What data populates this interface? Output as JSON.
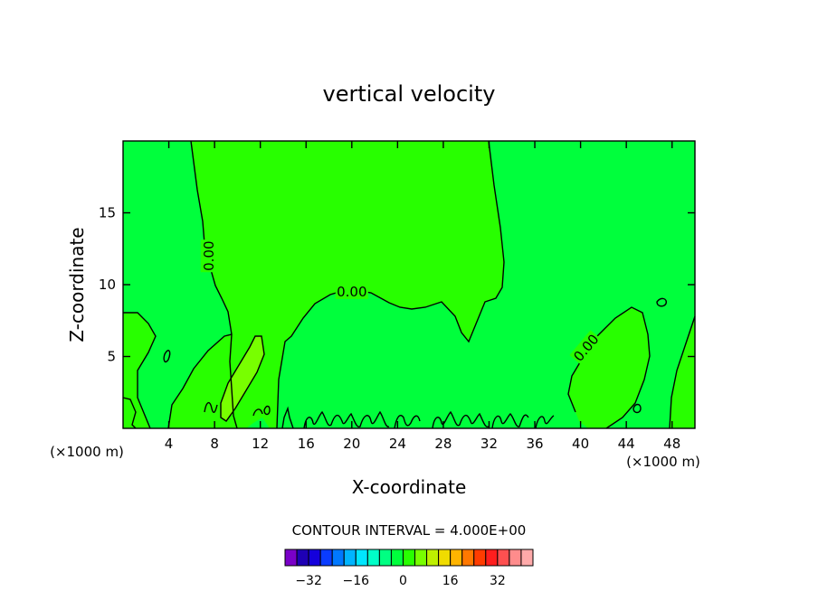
{
  "chart_data": {
    "type": "heatmap",
    "title": "vertical velocity",
    "xlabel": "X-coordinate",
    "ylabel": "Z-coordinate",
    "x_unit_left": "(×1000 m)",
    "x_unit_right": "(×1000 m)",
    "xlim": [
      0,
      50
    ],
    "ylim": [
      0,
      20
    ],
    "x_ticks": [
      4,
      8,
      12,
      16,
      20,
      24,
      28,
      32,
      36,
      40,
      44,
      48
    ],
    "x_tick_labels": [
      "4",
      "8",
      "12",
      "16",
      "20",
      "24",
      "28",
      "32",
      "36",
      "40",
      "44",
      "48"
    ],
    "y_ticks": [
      5,
      10,
      15
    ],
    "y_tick_labels": [
      "5",
      "10",
      "15"
    ],
    "contour_interval_text": "CONTOUR INTERVAL = 4.000E+00",
    "contour_labels": [
      {
        "text": "0.00",
        "x": 7.5,
        "z": 12.0,
        "angle": -90
      },
      {
        "text": "0.00",
        "x": 20.0,
        "z": 9.5,
        "angle": 0
      },
      {
        "text": "0.00",
        "x": 40.5,
        "z": 5.6,
        "angle": -50
      }
    ],
    "colorbar": {
      "colors": [
        "#7a00c8",
        "#1e00b4",
        "#1400dc",
        "#0a3cff",
        "#0078ff",
        "#00b4ff",
        "#00e6ff",
        "#00ffc8",
        "#00ff82",
        "#00ff3c",
        "#28ff00",
        "#78ff00",
        "#bef000",
        "#f0dc00",
        "#ffb400",
        "#ff7800",
        "#ff3c00",
        "#ff1e1e",
        "#ff5050",
        "#ff8c8c",
        "#ffaaaa"
      ],
      "tick_values": [
        -32,
        -16,
        0,
        16,
        32
      ],
      "tick_labels": [
        "−32",
        "−16",
        "0",
        "16",
        "32"
      ],
      "range": [
        -40,
        44
      ]
    },
    "colors": {
      "background_field": "#00ff3c",
      "updraft_field": "#28ff00",
      "strong_updraft_field": "#78ff00"
    }
  }
}
